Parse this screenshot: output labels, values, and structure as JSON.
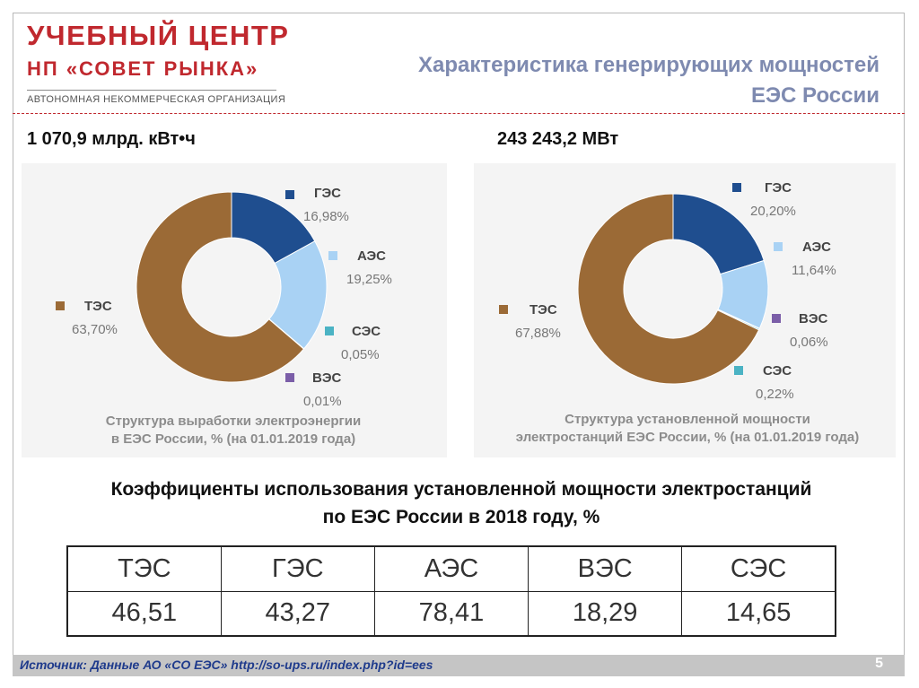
{
  "header": {
    "logo_line1": "УЧЕБНЫЙ ЦЕНТР",
    "logo_line2": "НП «СОВЕТ РЫНКА»",
    "logo_sub": "АВТОНОМНАЯ НЕКОММЕРЧЕСКАЯ ОРГАНИЗАЦИЯ",
    "title_line1": "Характеристика генерирующих мощностей",
    "title_line2": "ЕЭС России"
  },
  "totals": {
    "generation": "1 070,9  млрд. кВт•ч",
    "capacity": "243 243,2  МВт"
  },
  "colors": {
    "tes": "#9b6a36",
    "ges": "#1f4e8f",
    "aes": "#a9d2f4",
    "ses": "#4bb3c4",
    "ves": "#7b5ea8"
  },
  "chart_data": [
    {
      "type": "pie",
      "title_line1": "Структура выработки электроэнергии",
      "title_line2": "в ЕЭС России, % (на 01.01.2019 года)",
      "slices": [
        {
          "label": "ГЭС",
          "value": 16.98,
          "display": "16,98%",
          "color": "#1f4e8f"
        },
        {
          "label": "АЭС",
          "value": 19.25,
          "display": "19,25%",
          "color": "#a9d2f4"
        },
        {
          "label": "СЭС",
          "value": 0.05,
          "display": "0,05%",
          "color": "#4bb3c4"
        },
        {
          "label": "ВЭС",
          "value": 0.01,
          "display": "0,01%",
          "color": "#7b5ea8"
        },
        {
          "label": "ТЭС",
          "value": 63.7,
          "display": "63,70%",
          "color": "#9b6a36"
        }
      ]
    },
    {
      "type": "pie",
      "title_line1": "Структура установленной мощности",
      "title_line2": "электростанций ЕЭС России, % (на 01.01.2019 года)",
      "slices": [
        {
          "label": "ГЭС",
          "value": 20.2,
          "display": "20,20%",
          "color": "#1f4e8f"
        },
        {
          "label": "АЭС",
          "value": 11.64,
          "display": "11,64%",
          "color": "#a9d2f4"
        },
        {
          "label": "ВЭС",
          "value": 0.06,
          "display": "0,06%",
          "color": "#7b5ea8"
        },
        {
          "label": "СЭС",
          "value": 0.22,
          "display": "0,22%",
          "color": "#4bb3c4"
        },
        {
          "label": "ТЭС",
          "value": 67.88,
          "display": "67,88%",
          "color": "#9b6a36"
        }
      ]
    }
  ],
  "table": {
    "title_line1": "Коэффициенты использования установленной мощности электростанций",
    "title_line2": "по ЕЭС России в 2018 году, %",
    "headers": [
      "ТЭС",
      "ГЭС",
      "АЭС",
      "ВЭС",
      "СЭС"
    ],
    "values": [
      "46,51",
      "43,27",
      "78,41",
      "18,29",
      "14,65"
    ]
  },
  "footer": {
    "source": "Источник: Данные АО «СО ЕЭС» http://so-ups.ru/index.php?id=ees",
    "page": "5"
  }
}
